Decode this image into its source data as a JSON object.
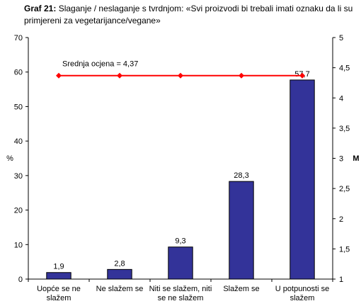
{
  "caption": {
    "number": "Graf 21:",
    "text": "Slaganje / neslaganje s tvrdnjom: «Svi proizvodi bi trebali imati oznaku da li su primjereni za vegetarijance/vegane»"
  },
  "chart_data": {
    "type": "bar",
    "categories": [
      [
        "Uopće se ne",
        "slažem"
      ],
      [
        "Ne slažem se"
      ],
      [
        "Niti se slažem, niti",
        "se ne slažem"
      ],
      [
        "Slažem se"
      ],
      [
        "U potpunosti se",
        "slažem"
      ]
    ],
    "values": [
      1.9,
      2.8,
      9.3,
      28.3,
      57.7
    ],
    "value_labels": [
      "1,9",
      "2,8",
      "9,3",
      "28,3",
      "57,7"
    ],
    "bar_color": "#333399",
    "ylabel": "%",
    "ylim": [
      0,
      70
    ],
    "yticks": [
      0,
      10,
      20,
      30,
      40,
      50,
      60,
      70
    ],
    "y2label": "M",
    "y2lim": [
      1,
      5
    ],
    "y2ticks": [
      "1",
      "1,5",
      "2",
      "2,5",
      "3",
      "3,5",
      "4",
      "4,5",
      "5"
    ],
    "mean_line": {
      "label": "Srednja ocjena = 4,37",
      "value": 4.37,
      "color": "#ff0000"
    },
    "grid": false,
    "legend": "none"
  }
}
